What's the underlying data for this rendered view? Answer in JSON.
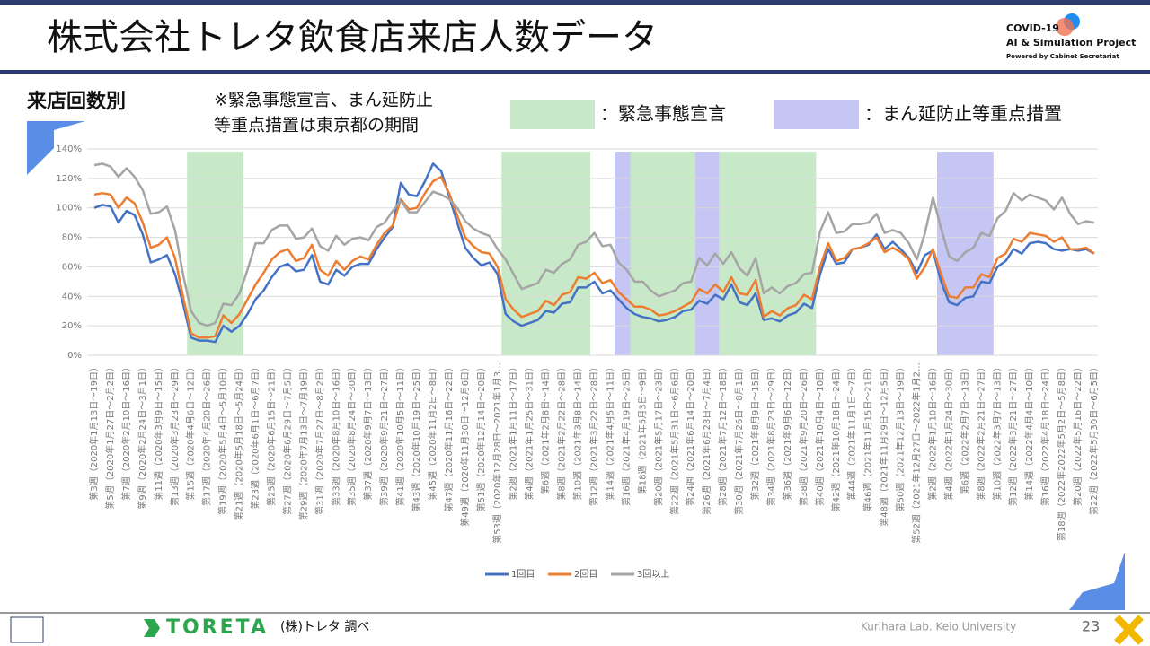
{
  "header": {
    "title": "株式会社トレタ飲食店来店人数データ",
    "logo": [
      "COVID-19",
      "AI & Simulation Project",
      "Powered by Cabinet Secretariat"
    ]
  },
  "section": "来店回数別",
  "note": [
    "※緊急事態宣言、まん延防止",
    "等重点措置は東京都の期間"
  ],
  "chart_data": {
    "type": "line",
    "categories": [
      "第3週（2020年1月13日～19日）",
      null,
      "第5週（2020年1月27日～2月2日）",
      null,
      "第7週（2020年2月10日～16日）",
      null,
      "第9週（2020年2月24日～3月1日）",
      null,
      "第11週（2020年3月9日～15日）",
      null,
      "第13週（2020年3月23日～29日）",
      null,
      "第15週（2020年4月6日～12日）",
      null,
      "第17週（2020年4月20日～26日）",
      null,
      "第19週（2020年5月4日～5月10日）",
      null,
      "第21週（2020年5月18日～5月24日）",
      null,
      "第23週（2020年6月1日～6月7日）",
      null,
      "第25週（2020年6月15日～21日）",
      null,
      "第27週（2020年6月29日～7月5日）",
      null,
      "第29週（2020年7月13日～7月19日）",
      null,
      "第31週（2020年7月27日～8月2日）",
      null,
      "第33週（2020年8月10日～16日）",
      null,
      "第35週（2020年8月24日～30日）",
      null,
      "第37週（2020年9月7日～13日）",
      null,
      "第39週（2020年9月21日～27日）",
      null,
      "第41週（2020年10月5日～11日）",
      null,
      "第43週（2020年10月19日～25日）",
      null,
      "第45週（2020年11月2日～8日）",
      null,
      "第47週（2020年11月16日～22日）",
      null,
      "第49週（2020年11月30日～12月6日）",
      null,
      "第51週（2020年12月14日～20日）",
      null,
      "第53週（2020年12月28日～2021年1月3…",
      null,
      "第2週（2021年1月11日～17日）",
      null,
      "第4週（2021年1月25日～31日）",
      null,
      "第6週（2021年2月8日～14日）",
      null,
      "第8週（2021年2月22日～28日）",
      null,
      "第10週（2021年3月8日～14日）",
      null,
      "第12週（2021年3月22日～28日）",
      null,
      "第14週（2021年4月5日～11日）",
      null,
      "第16週（2021年4月19日～25日）",
      null,
      "第18週（2021年5月3日～9日）",
      null,
      "第20週（2021年5月17日～23日）",
      null,
      "第22週（2021年5月31日～6月6日）",
      null,
      "第24週（2021年6月14日～20日）",
      null,
      "第26週（2021年6月28日～7月4日）",
      null,
      "第28週（2021年7月12日～18日）",
      null,
      "第30週（2021年7月26日～8月1日）",
      null,
      "第32週（2021年8月9日～15日）",
      null,
      "第34週（2021年8月23日～29日）",
      null,
      "第36週（2021年9月6日～12日）",
      null,
      "第38週（2021年9月20日～26日）",
      null,
      "第40週（2021年10月4日～10日）",
      null,
      "第42週（2021年10月18日～24日）",
      null,
      "第44週（2021年11月1日～7日）",
      null,
      "第46週（2021年11月15日～21日）",
      null,
      "第48週（2021年11月29日～12月5日）",
      null,
      "第50週（2021年12月13日～19日）",
      null,
      "第52週（2021年12月27日～2022年1月2…",
      null,
      "第2週（2022年1月10日～16日）",
      null,
      "第4週（2022年1月24日～30日）",
      null,
      "第6週（2022年2月7日～13日）",
      null,
      "第8週（2022年2月21日～27日）",
      null,
      "第10週（2022年3月7日～13日）",
      null,
      "第12週（2022年3月21日～27日）",
      null,
      "第14週（2022年4月4日～10日）",
      null,
      "第16週（2022年4月18日～24日）",
      null,
      "第18週（2022年2022年5月2日～5月8日）",
      null,
      "第20週（2022年5月16日～22日）",
      null,
      "第22週（2022年5月30日～6月5日）"
    ],
    "series": [
      {
        "name": "1回目",
        "color": "#4472c4",
        "values": [
          100,
          102,
          101,
          90,
          98,
          95,
          82,
          63,
          65,
          68,
          55,
          35,
          12,
          10,
          10,
          9,
          20,
          16,
          20,
          28,
          38,
          44,
          53,
          60,
          62,
          57,
          58,
          68,
          50,
          48,
          58,
          54,
          60,
          62,
          62,
          72,
          80,
          87,
          117,
          109,
          108,
          118,
          130,
          125,
          108,
          90,
          73,
          66,
          61,
          63,
          55,
          28,
          23,
          20,
          22,
          24,
          30,
          29,
          35,
          36,
          46,
          46,
          50,
          42,
          44,
          38,
          32,
          28,
          26,
          25,
          23,
          24,
          26,
          30,
          31,
          37,
          35,
          41,
          38,
          48,
          36,
          34,
          42,
          24,
          25,
          23,
          27,
          29,
          35,
          32,
          55,
          72,
          62,
          63,
          72,
          73,
          75,
          82,
          72,
          77,
          72,
          66,
          56,
          68,
          71,
          50,
          36,
          34,
          39,
          40,
          50,
          49,
          60,
          64,
          72,
          69,
          76,
          77,
          76,
          72,
          71,
          72,
          71,
          72,
          69
        ]
      },
      {
        "name": "2回目",
        "color": "#ed7d31",
        "values": [
          109,
          110,
          109,
          100,
          107,
          103,
          90,
          73,
          75,
          80,
          66,
          40,
          15,
          12,
          12,
          13,
          27,
          22,
          28,
          38,
          48,
          56,
          65,
          70,
          72,
          64,
          66,
          75,
          58,
          54,
          64,
          58,
          64,
          67,
          65,
          75,
          83,
          88,
          106,
          99,
          100,
          110,
          118,
          121,
          110,
          95,
          80,
          74,
          70,
          69,
          60,
          38,
          31,
          26,
          28,
          30,
          37,
          34,
          41,
          43,
          53,
          52,
          56,
          49,
          51,
          43,
          38,
          33,
          33,
          31,
          27,
          28,
          30,
          33,
          36,
          45,
          42,
          48,
          43,
          53,
          42,
          41,
          51,
          26,
          30,
          27,
          32,
          34,
          41,
          38,
          60,
          76,
          64,
          66,
          72,
          73,
          76,
          80,
          70,
          73,
          70,
          65,
          52,
          60,
          72,
          55,
          40,
          39,
          46,
          46,
          55,
          53,
          66,
          69,
          79,
          77,
          83,
          82,
          81,
          77,
          80,
          72,
          72,
          73,
          69
        ]
      },
      {
        "name": "3回以上",
        "color": "#a5a5a5",
        "values": [
          129,
          130,
          128,
          121,
          127,
          121,
          112,
          96,
          97,
          101,
          85,
          55,
          30,
          22,
          20,
          22,
          35,
          34,
          42,
          58,
          76,
          76,
          85,
          88,
          88,
          79,
          80,
          86,
          74,
          71,
          81,
          75,
          79,
          80,
          78,
          87,
          90,
          98,
          105,
          97,
          97,
          104,
          111,
          109,
          106,
          100,
          91,
          86,
          83,
          81,
          72,
          65,
          55,
          45,
          47,
          49,
          58,
          56,
          62,
          65,
          75,
          77,
          83,
          74,
          75,
          63,
          58,
          50,
          50,
          44,
          40,
          42,
          44,
          49,
          50,
          66,
          61,
          69,
          62,
          70,
          59,
          54,
          66,
          42,
          46,
          42,
          47,
          49,
          55,
          56,
          84,
          97,
          83,
          84,
          89,
          89,
          90,
          96,
          83,
          85,
          83,
          76,
          65,
          83,
          107,
          86,
          67,
          64,
          70,
          73,
          83,
          81,
          93,
          98,
          110,
          105,
          109,
          107,
          105,
          99,
          107,
          96,
          89,
          91,
          90
        ]
      }
    ],
    "ylim": [
      0,
      140
    ],
    "yticks": [
      {
        "value": 0,
        "label": "0%"
      },
      {
        "value": 20,
        "label": "20%"
      },
      {
        "value": 40,
        "label": "40%"
      },
      {
        "value": 60,
        "label": "60%"
      },
      {
        "value": 80,
        "label": "80%"
      },
      {
        "value": 100,
        "label": "100%"
      },
      {
        "value": 120,
        "label": "120%"
      },
      {
        "value": 140,
        "label": "140%"
      }
    ],
    "grid": true,
    "legend": "bottom",
    "band_legend": [
      {
        "name": "：緊急事態宣言",
        "color": "#c8e9c8"
      },
      {
        "name": "：まん延防止等重点措置",
        "color": "#c6c6f5"
      }
    ],
    "bands": [
      {
        "kind": 0,
        "from": 11.5,
        "to": 18.5
      },
      {
        "kind": 0,
        "from": 50.5,
        "to": 61.5
      },
      {
        "kind": 1,
        "from": 64.5,
        "to": 66.5
      },
      {
        "kind": 0,
        "from": 66.5,
        "to": 74.5
      },
      {
        "kind": 1,
        "from": 74.5,
        "to": 77.5
      },
      {
        "kind": 0,
        "from": 77.5,
        "to": 89.5
      },
      {
        "kind": 1,
        "from": 104.5,
        "to": 111.5
      }
    ]
  },
  "footer": {
    "brand": "TORETA",
    "source": "(株)トレタ 調べ",
    "lab": "Kurihara Lab. Keio University",
    "page": "23"
  }
}
